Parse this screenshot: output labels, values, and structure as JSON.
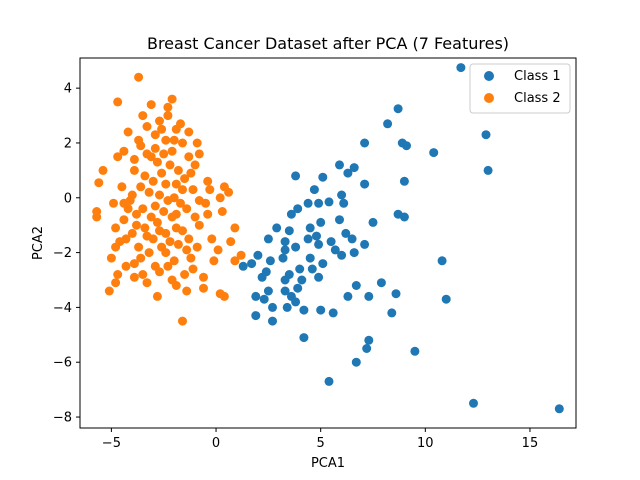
{
  "chart_data": {
    "type": "scatter",
    "title": "Breast Cancer Dataset after PCA (7 Features)",
    "xlabel": "PCA1",
    "ylabel": "PCA2",
    "xlim": [
      -6.5,
      17.2
    ],
    "ylim": [
      -8.4,
      5.1
    ],
    "xticks": [
      -5,
      0,
      5,
      10,
      15
    ],
    "yticks": [
      -8,
      -6,
      -4,
      -2,
      0,
      2,
      4
    ],
    "grid": false,
    "legend_position": "top-right",
    "series": [
      {
        "name": "Class 1",
        "color": "#1f77b4",
        "points": [
          [
            11.7,
            4.75
          ],
          [
            8.7,
            3.25
          ],
          [
            8.2,
            2.7
          ],
          [
            12.9,
            2.3
          ],
          [
            7.1,
            2.0
          ],
          [
            8.9,
            2.0
          ],
          [
            9.1,
            1.9
          ],
          [
            10.4,
            1.65
          ],
          [
            5.9,
            1.2
          ],
          [
            6.6,
            1.1
          ],
          [
            13.0,
            1.0
          ],
          [
            3.8,
            0.8
          ],
          [
            6.3,
            0.9
          ],
          [
            5.1,
            0.75
          ],
          [
            9.0,
            0.6
          ],
          [
            7.1,
            0.5
          ],
          [
            4.7,
            0.3
          ],
          [
            6.0,
            0.1
          ],
          [
            4.4,
            -0.2
          ],
          [
            4.9,
            -0.2
          ],
          [
            5.4,
            -0.15
          ],
          [
            6.1,
            -0.2
          ],
          [
            3.9,
            -0.4
          ],
          [
            3.6,
            -0.6
          ],
          [
            5.9,
            -0.8
          ],
          [
            8.7,
            -0.6
          ],
          [
            9.0,
            -0.7
          ],
          [
            7.5,
            -0.9
          ],
          [
            5.0,
            -0.9
          ],
          [
            4.5,
            -1.1
          ],
          [
            2.9,
            -1.1
          ],
          [
            3.5,
            -1.2
          ],
          [
            6.2,
            -1.3
          ],
          [
            4.8,
            -1.4
          ],
          [
            4.4,
            -1.5
          ],
          [
            6.5,
            -1.5
          ],
          [
            2.5,
            -1.5
          ],
          [
            3.3,
            -1.6
          ],
          [
            7.1,
            -1.7
          ],
          [
            5.5,
            -1.6
          ],
          [
            4.9,
            -1.7
          ],
          [
            3.8,
            -1.8
          ],
          [
            3.3,
            -1.9
          ],
          [
            5.7,
            -1.9
          ],
          [
            6.0,
            -2.1
          ],
          [
            6.6,
            -2.0
          ],
          [
            2.0,
            -2.1
          ],
          [
            4.5,
            -2.2
          ],
          [
            2.6,
            -2.3
          ],
          [
            3.2,
            -2.2
          ],
          [
            1.7,
            -2.4
          ],
          [
            1.3,
            -2.5
          ],
          [
            5.1,
            -2.4
          ],
          [
            4.0,
            -2.6
          ],
          [
            4.6,
            -2.6
          ],
          [
            2.4,
            -2.7
          ],
          [
            3.5,
            -2.8
          ],
          [
            4.9,
            -2.9
          ],
          [
            2.2,
            -2.9
          ],
          [
            3.3,
            -3.0
          ],
          [
            4.1,
            -3.0
          ],
          [
            7.9,
            -3.1
          ],
          [
            10.8,
            -2.3
          ],
          [
            3.9,
            -3.3
          ],
          [
            6.7,
            -3.2
          ],
          [
            2.5,
            -3.4
          ],
          [
            3.3,
            -3.4
          ],
          [
            1.9,
            -3.6
          ],
          [
            3.6,
            -3.6
          ],
          [
            6.3,
            -3.6
          ],
          [
            7.3,
            -3.6
          ],
          [
            8.6,
            -3.5
          ],
          [
            2.3,
            -3.7
          ],
          [
            3.8,
            -3.8
          ],
          [
            11.0,
            -3.7
          ],
          [
            2.7,
            -4.0
          ],
          [
            3.4,
            -4.0
          ],
          [
            4.2,
            -4.1
          ],
          [
            5.0,
            -4.1
          ],
          [
            8.4,
            -4.2
          ],
          [
            1.9,
            -4.3
          ],
          [
            2.7,
            -4.5
          ],
          [
            5.6,
            -4.2
          ],
          [
            4.2,
            -5.1
          ],
          [
            7.3,
            -5.2
          ],
          [
            7.2,
            -5.5
          ],
          [
            9.5,
            -5.6
          ],
          [
            6.7,
            -6.0
          ],
          [
            5.4,
            -6.7
          ],
          [
            12.3,
            -7.5
          ],
          [
            16.4,
            -7.7
          ]
        ]
      },
      {
        "name": "Class 2",
        "color": "#ff7f0e",
        "points": [
          [
            -3.7,
            4.4
          ],
          [
            -4.7,
            3.5
          ],
          [
            -2.1,
            3.6
          ],
          [
            -2.3,
            3.3
          ],
          [
            -3.1,
            3.4
          ],
          [
            -3.5,
            3.0
          ],
          [
            -2.7,
            2.8
          ],
          [
            -3.3,
            2.6
          ],
          [
            -4.2,
            2.4
          ],
          [
            -1.9,
            2.5
          ],
          [
            -1.3,
            2.4
          ],
          [
            -2.9,
            2.3
          ],
          [
            -2.4,
            2.1
          ],
          [
            -1.6,
            2.0
          ],
          [
            -3.6,
            1.9
          ],
          [
            -2.1,
            1.7
          ],
          [
            -0.8,
            1.6
          ],
          [
            -4.7,
            1.5
          ],
          [
            -3.1,
            1.5
          ],
          [
            -1.0,
            1.2
          ],
          [
            -5.4,
            1.0
          ],
          [
            -3.9,
            1.0
          ],
          [
            -1.2,
            0.9
          ],
          [
            -0.4,
            0.6
          ],
          [
            -5.6,
            0.55
          ],
          [
            -4.5,
            0.4
          ],
          [
            -1.6,
            0.3
          ],
          [
            0.4,
            0.4
          ],
          [
            0.6,
            0.2
          ],
          [
            -2.0,
            0.0
          ],
          [
            -4.9,
            -0.2
          ],
          [
            -4.1,
            -0.1
          ],
          [
            -0.8,
            -0.1
          ],
          [
            0.2,
            0.0
          ],
          [
            -5.7,
            -0.5
          ],
          [
            -5.7,
            -0.7
          ],
          [
            -4.4,
            -0.8
          ],
          [
            -1.9,
            -0.6
          ],
          [
            -0.4,
            -0.6
          ],
          [
            0.3,
            -0.5
          ],
          [
            -4.8,
            -1.1
          ],
          [
            -3.8,
            -1.0
          ],
          [
            -2.7,
            -1.2
          ],
          [
            -0.8,
            -1.0
          ],
          [
            -4.3,
            -1.5
          ],
          [
            -3.3,
            -1.4
          ],
          [
            -1.3,
            -1.5
          ],
          [
            -0.2,
            -1.5
          ],
          [
            0.7,
            -1.6
          ],
          [
            -4.8,
            -1.8
          ],
          [
            -2.4,
            -2.0
          ],
          [
            -1.4,
            -1.9
          ],
          [
            0.1,
            -1.9
          ],
          [
            -5.0,
            -2.2
          ],
          [
            -3.6,
            -2.2
          ],
          [
            -2.0,
            -2.3
          ],
          [
            -0.1,
            -2.3
          ],
          [
            0.9,
            -2.3
          ],
          [
            1.2,
            -2.1
          ],
          [
            -4.3,
            -2.5
          ],
          [
            -2.9,
            -2.5
          ],
          [
            -1.1,
            -2.6
          ],
          [
            -3.5,
            -2.8
          ],
          [
            -4.7,
            -2.8
          ],
          [
            -2.1,
            -3.0
          ],
          [
            -4.8,
            -3.1
          ],
          [
            -3.3,
            -3.1
          ],
          [
            -1.9,
            -3.2
          ],
          [
            -0.6,
            -3.3
          ],
          [
            0.2,
            -3.5
          ],
          [
            -5.1,
            -3.4
          ],
          [
            0.4,
            -3.6
          ],
          [
            -1.6,
            -4.5
          ],
          [
            -3.0,
            0.6
          ],
          [
            -2.6,
            0.9
          ],
          [
            -2.2,
            1.2
          ],
          [
            -2.8,
            1.3
          ],
          [
            -1.8,
            1.0
          ],
          [
            -3.4,
            0.8
          ],
          [
            -2.4,
            0.5
          ],
          [
            -3.2,
            0.2
          ],
          [
            -2.7,
            0.1
          ],
          [
            -1.9,
            0.5
          ],
          [
            -1.5,
            0.7
          ],
          [
            -3.6,
            0.4
          ],
          [
            -2.3,
            -0.1
          ],
          [
            -2.9,
            -0.3
          ],
          [
            -3.5,
            -0.4
          ],
          [
            -1.7,
            -0.2
          ],
          [
            -2.5,
            -0.5
          ],
          [
            -3.1,
            -0.7
          ],
          [
            -1.4,
            -0.4
          ],
          [
            -2.1,
            -0.7
          ],
          [
            -3.8,
            -0.6
          ],
          [
            -2.8,
            -0.9
          ],
          [
            -1.9,
            -1.1
          ],
          [
            -3.4,
            -1.1
          ],
          [
            -2.4,
            -1.3
          ],
          [
            -1.6,
            -1.2
          ],
          [
            -3.0,
            -1.5
          ],
          [
            -2.2,
            -1.6
          ],
          [
            -3.7,
            -1.8
          ],
          [
            -2.6,
            -1.8
          ],
          [
            -1.8,
            -1.7
          ],
          [
            -3.2,
            -2.0
          ],
          [
            -1.2,
            -2.2
          ],
          [
            -2.9,
            1.8
          ],
          [
            -2.0,
            2.1
          ],
          [
            -1.3,
            1.5
          ],
          [
            -3.3,
            1.6
          ],
          [
            -2.5,
            1.6
          ],
          [
            -4.0,
            0.1
          ],
          [
            -4.2,
            -0.4
          ],
          [
            -1.1,
            0.3
          ],
          [
            -1.0,
            -0.7
          ],
          [
            -0.5,
            -0.2
          ],
          [
            -0.3,
            0.3
          ],
          [
            -4.0,
            -1.3
          ],
          [
            -3.9,
            -2.4
          ],
          [
            -2.7,
            -2.7
          ],
          [
            -1.5,
            -2.8
          ],
          [
            -2.3,
            -2.5
          ],
          [
            -4.4,
            -0.2
          ],
          [
            -3.7,
            2.1
          ],
          [
            -2.6,
            2.5
          ],
          [
            -1.7,
            2.7
          ],
          [
            -4.4,
            1.7
          ],
          [
            -0.9,
            2.0
          ],
          [
            -2.3,
            3.0
          ],
          [
            -3.9,
            1.4
          ],
          [
            -1.4,
            -3.4
          ],
          [
            -2.8,
            -3.6
          ],
          [
            -3.9,
            -2.9
          ],
          [
            -4.6,
            -1.6
          ],
          [
            -0.6,
            -2.9
          ],
          [
            0.9,
            -1.1
          ],
          [
            -0.9,
            -1.8
          ]
        ]
      }
    ]
  }
}
